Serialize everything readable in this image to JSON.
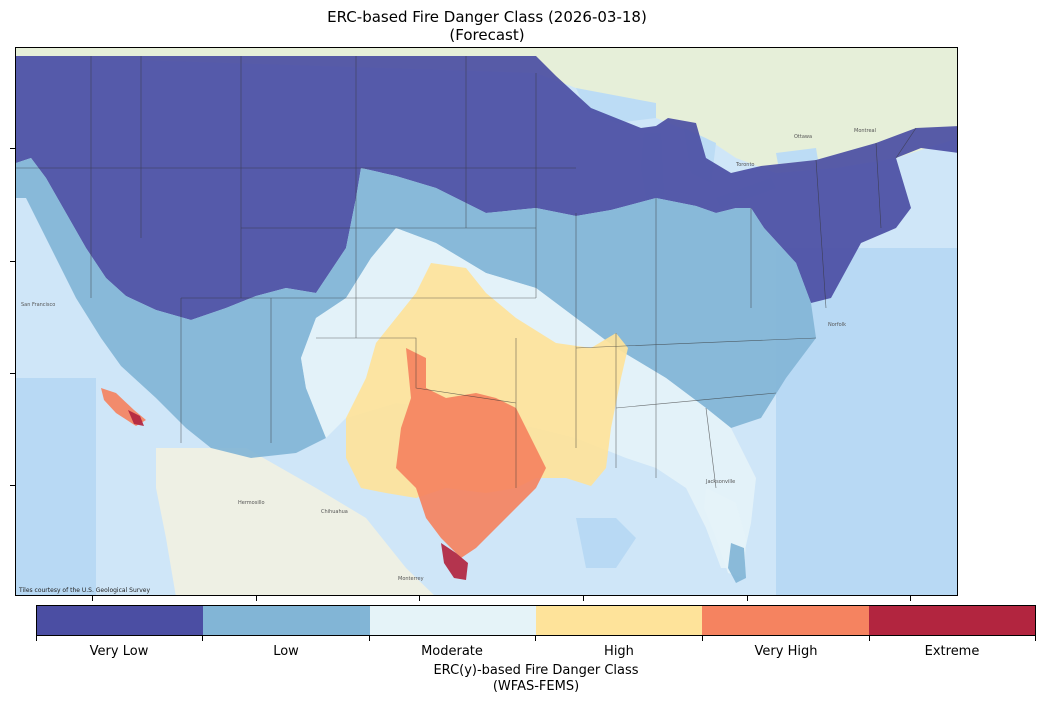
{
  "title": {
    "line1": "ERC-based Fire Danger Class (2026-03-18)",
    "line2": "(Forecast)"
  },
  "map": {
    "attribution": "Tiles courtesy of the U.S. Geological Survey",
    "basemap": "usgs-topo",
    "region": "Contiguous United States",
    "colors": {
      "ocean": "#cfe6f8",
      "land_mexico": "#eef0e4",
      "land_canada": "#e6efd9",
      "lakes": "#bcdcf5"
    }
  },
  "colorbar": {
    "title_line1": "ERC(y)-based Fire Danger Class",
    "title_line2": "(WFAS-FEMS)",
    "classes": [
      {
        "label": "Very Low",
        "color": "#4b4ea3"
      },
      {
        "label": "Low",
        "color": "#82b5d6"
      },
      {
        "label": "Moderate",
        "color": "#e5f3f8"
      },
      {
        "label": "High",
        "color": "#fee39a"
      },
      {
        "label": "Very High",
        "color": "#f58360"
      },
      {
        "label": "Extreme",
        "color": "#b2253f"
      }
    ]
  }
}
